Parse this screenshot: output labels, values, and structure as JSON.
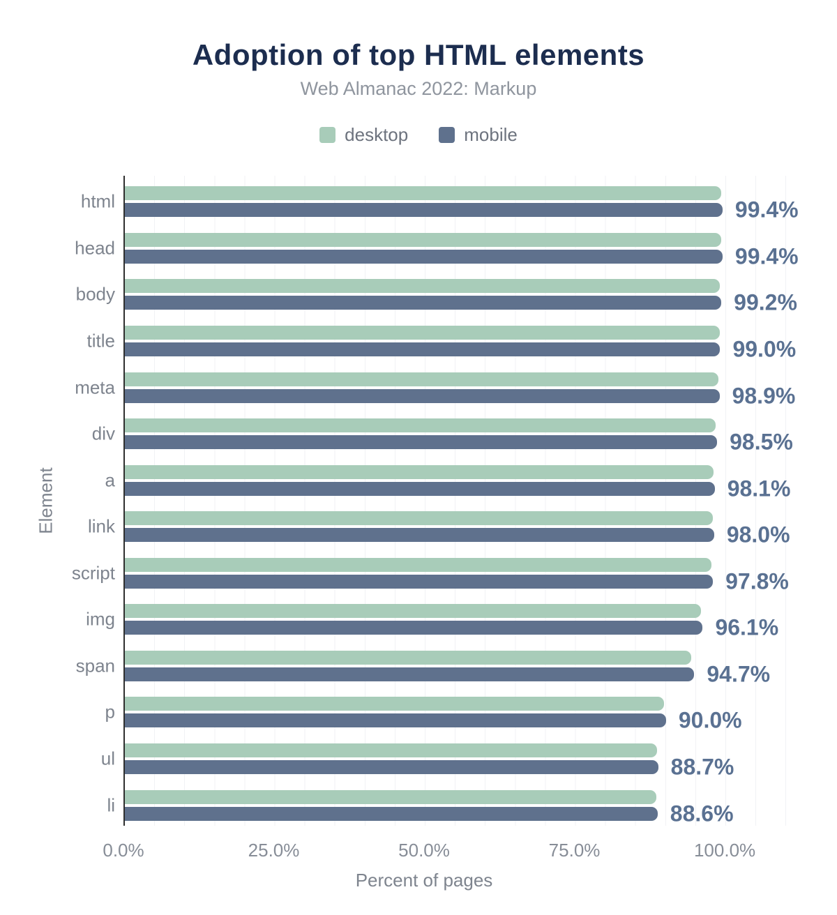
{
  "chart": {
    "title": "Adoption of top HTML elements",
    "subtitle": "Web Almanac 2022: Markup"
  },
  "legend": {
    "items": [
      {
        "label": "desktop",
        "color": "#a8ccb9"
      },
      {
        "label": "mobile",
        "color": "#5f718d"
      }
    ]
  },
  "chart_data": {
    "type": "bar",
    "orientation": "horizontal",
    "title": "Adoption of top HTML elements",
    "subtitle": "Web Almanac 2022: Markup",
    "categories": [
      "html",
      "head",
      "body",
      "title",
      "meta",
      "div",
      "a",
      "link",
      "script",
      "img",
      "span",
      "p",
      "ul",
      "li"
    ],
    "series": [
      {
        "name": "desktop",
        "color": "#a8ccb9",
        "values": [
          99.2,
          99.2,
          99.0,
          98.9,
          98.7,
          98.3,
          97.9,
          97.8,
          97.6,
          95.8,
          94.2,
          89.7,
          88.5,
          88.4
        ]
      },
      {
        "name": "mobile",
        "color": "#5f718d",
        "values": [
          99.4,
          99.4,
          99.2,
          99.0,
          98.9,
          98.5,
          98.1,
          98.0,
          97.8,
          96.1,
          94.7,
          90.0,
          88.7,
          88.6
        ]
      }
    ],
    "value_labels": [
      "99.4%",
      "99.4%",
      "99.2%",
      "99.0%",
      "98.9%",
      "98.5%",
      "98.1%",
      "98.0%",
      "97.8%",
      "96.1%",
      "94.7%",
      "90.0%",
      "88.7%",
      "88.6%"
    ],
    "value_label_series": "mobile",
    "value_label_color": "#5a7192",
    "xlabel": "Percent of pages",
    "ylabel": "Element",
    "xlim": [
      0,
      110.2
    ],
    "xticks": [
      {
        "value": 0,
        "label": "0.0%"
      },
      {
        "value": 25,
        "label": "25.0%"
      },
      {
        "value": 50,
        "label": "50.0%"
      },
      {
        "value": 75,
        "label": "75.0%"
      },
      {
        "value": 100,
        "label": "100.0%"
      }
    ],
    "grid": {
      "show": true,
      "minor_step_percent": 5,
      "color": "#f1f2f5"
    },
    "legend_position": "top"
  },
  "colors": {
    "title": "#1c2d4f",
    "subtitle": "#8f959e",
    "axis_text": "#7e848e",
    "axis_line": "#2e2e2e",
    "background": "#ffffff"
  }
}
